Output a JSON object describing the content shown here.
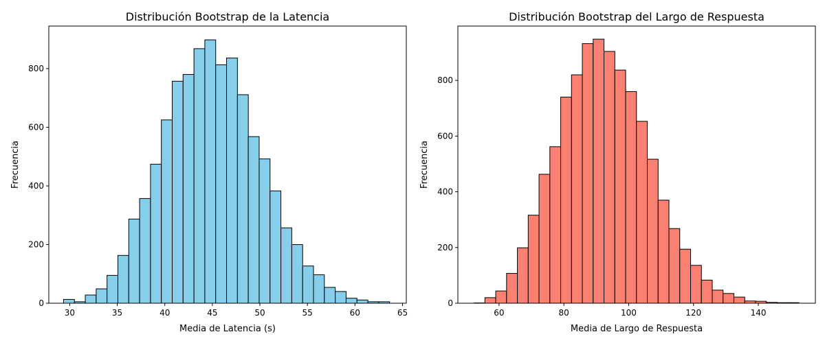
{
  "chart_data": [
    {
      "type": "bar",
      "title": "Distribución Bootstrap de la Latencia",
      "xlabel": "Media de Latencia (s)",
      "ylabel": "Frecuencia",
      "color": "#87CEEB",
      "edge_color": "#000000",
      "xlim": [
        27.8,
        65.4
      ],
      "ylim": [
        0,
        945
      ],
      "xticks": [
        30,
        35,
        40,
        45,
        50,
        55,
        60,
        65
      ],
      "yticks": [
        0,
        200,
        400,
        600,
        800
      ],
      "bin_start": 29.35,
      "bin_width": 1.143,
      "values": [
        13,
        5,
        28,
        49,
        95,
        163,
        287,
        357,
        474,
        625,
        757,
        780,
        868,
        898,
        813,
        836,
        711,
        568,
        492,
        383,
        257,
        200,
        127,
        97,
        54,
        40,
        17,
        11,
        5,
        5
      ]
    },
    {
      "type": "bar",
      "title": "Distribución Bootstrap del Largo de Respuesta",
      "xlabel": "Media de Largo de Respuesta",
      "ylabel": "Frecuencia",
      "color": "#FA8072",
      "edge_color": "#000000",
      "xlim": [
        47.3,
        157.6
      ],
      "ylim": [
        0,
        995
      ],
      "xticks": [
        60,
        80,
        100,
        120,
        140
      ],
      "yticks": [
        0,
        200,
        400,
        600,
        800
      ],
      "bin_start": 52.3,
      "bin_width": 3.34,
      "values": [
        1,
        20,
        44,
        107,
        199,
        316,
        463,
        562,
        740,
        820,
        932,
        948,
        904,
        837,
        760,
        653,
        517,
        370,
        268,
        194,
        136,
        83,
        47,
        35,
        22,
        8,
        7,
        3,
        2,
        2
      ]
    }
  ]
}
